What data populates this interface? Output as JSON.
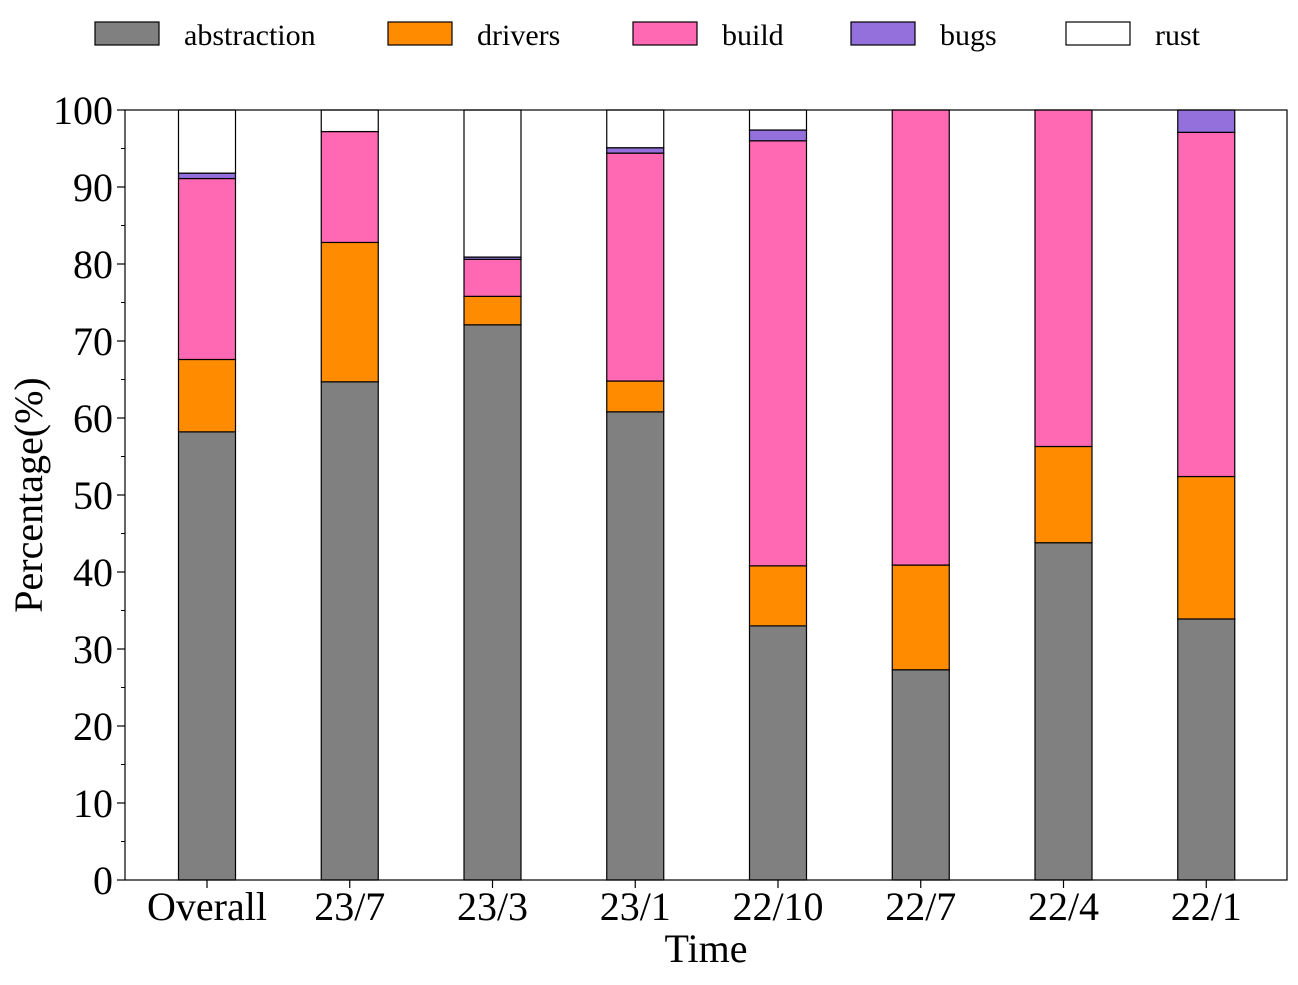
{
  "chart_data": {
    "type": "bar",
    "stacked": true,
    "title": "",
    "xlabel": "Time",
    "ylabel": "Percentage(%)",
    "ylim": [
      0,
      100
    ],
    "yticks": [
      0,
      10,
      20,
      30,
      40,
      50,
      60,
      70,
      80,
      90,
      100
    ],
    "grid": false,
    "legend": "top",
    "categories": [
      "Overall",
      "23/7",
      "23/3",
      "23/1",
      "22/10",
      "22/7",
      "22/4",
      "22/1"
    ],
    "series": [
      {
        "name": "abstraction",
        "color": "#808080",
        "values": [
          58.2,
          64.7,
          72.1,
          60.8,
          33.0,
          27.3,
          43.8,
          33.9
        ]
      },
      {
        "name": "drivers",
        "color": "#FF8C00",
        "values": [
          9.4,
          18.1,
          3.7,
          4.0,
          7.8,
          13.6,
          12.5,
          18.5
        ]
      },
      {
        "name": "build",
        "color": "#FF69B4",
        "values": [
          23.5,
          14.4,
          4.8,
          29.6,
          55.2,
          59.1,
          43.7,
          44.7
        ]
      },
      {
        "name": "bugs",
        "color": "#9370DB",
        "values": [
          0.7,
          0.0,
          0.3,
          0.7,
          1.4,
          0.0,
          0.0,
          2.9
        ]
      },
      {
        "name": "rust",
        "color": "#FFFFFF",
        "values": [
          8.2,
          2.8,
          19.1,
          4.9,
          2.6,
          0.0,
          0.0,
          0.0
        ]
      }
    ]
  }
}
